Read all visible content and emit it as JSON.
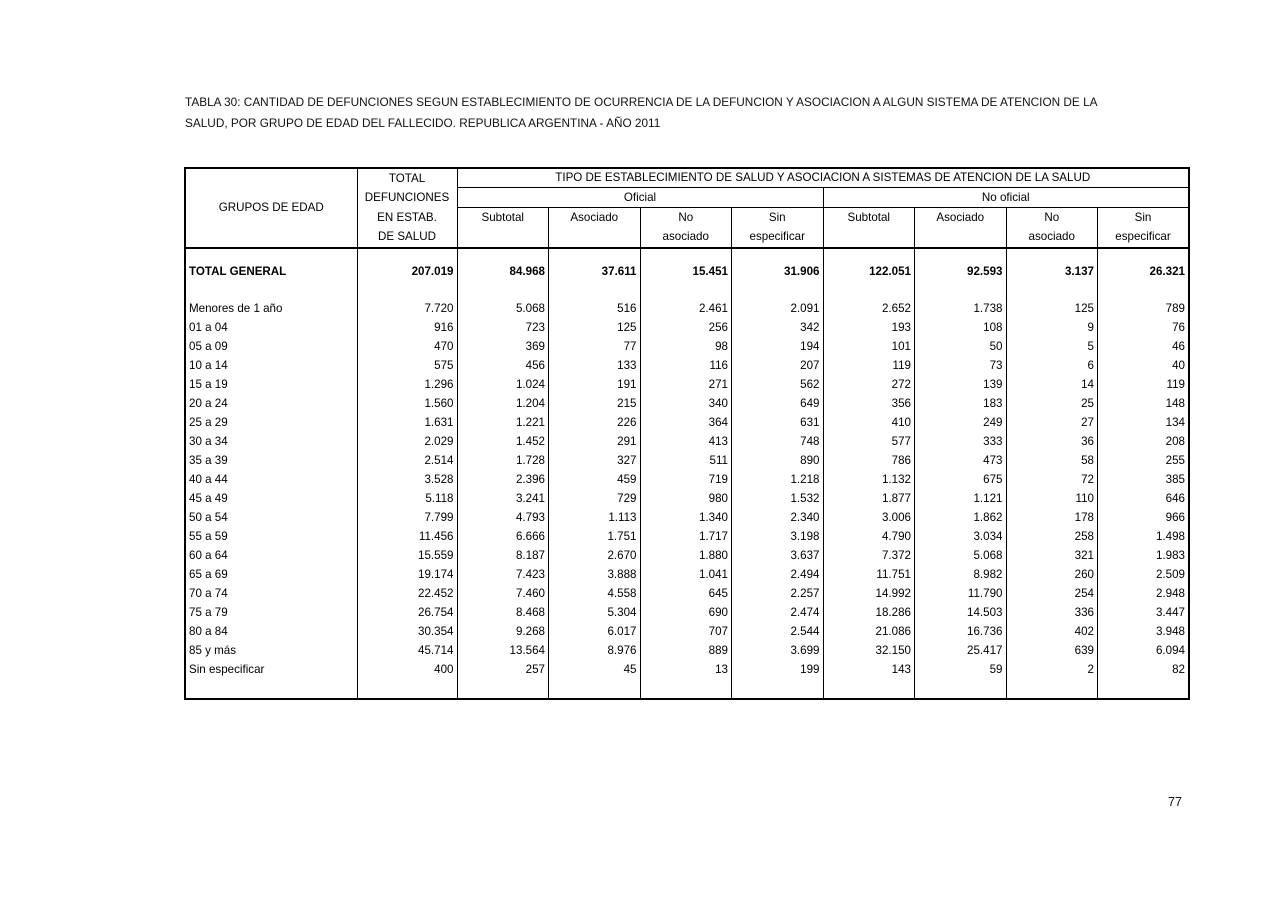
{
  "document": {
    "title_lines": [
      "TABLA 30: CANTIDAD DE DEFUNCIONES SEGUN ESTABLECIMIENTO DE OCURRENCIA DE LA DEFUNCION Y ASOCIACION A ALGUN SISTEMA DE ATENCION DE LA",
      "SALUD, POR GRUPO DE EDAD DEL FALLECIDO. REPUBLICA ARGENTINA - AÑO 2011"
    ],
    "page_number": "77"
  },
  "table": {
    "col_age_header": "GRUPOS DE EDAD",
    "col_total_header_lines": [
      "TOTAL",
      "DEFUNCIONES",
      "EN ESTAB.",
      "DE SALUD"
    ],
    "group_header": "TIPO DE ESTABLECIMIENTO DE SALUD Y ASOCIACION A SISTEMAS DE ATENCION DE LA SALUD",
    "subgroup_oficial": "Oficial",
    "subgroup_no_oficial": "No oficial",
    "sub_headers": [
      {
        "line1": "Subtotal",
        "line2": ""
      },
      {
        "line1": "Asociado",
        "line2": ""
      },
      {
        "line1": "No",
        "line2": "asociado"
      },
      {
        "line1": "Sin",
        "line2": "especificar"
      },
      {
        "line1": "Subtotal",
        "line2": ""
      },
      {
        "line1": "Asociado",
        "line2": ""
      },
      {
        "line1": "No",
        "line2": "asociado"
      },
      {
        "line1": "Sin",
        "line2": "especificar"
      }
    ],
    "total_row": {
      "label": "TOTAL GENERAL",
      "values": [
        "207.019",
        "84.968",
        "37.611",
        "15.451",
        "31.906",
        "122.051",
        "92.593",
        "3.137",
        "26.321"
      ]
    },
    "rows": [
      {
        "label": "Menores de 1 año",
        "values": [
          "7.720",
          "5.068",
          "516",
          "2.461",
          "2.091",
          "2.652",
          "1.738",
          "125",
          "789"
        ]
      },
      {
        "label": "01 a 04",
        "values": [
          "916",
          "723",
          "125",
          "256",
          "342",
          "193",
          "108",
          "9",
          "76"
        ]
      },
      {
        "label": "05 a 09",
        "values": [
          "470",
          "369",
          "77",
          "98",
          "194",
          "101",
          "50",
          "5",
          "46"
        ]
      },
      {
        "label": "10 a 14",
        "values": [
          "575",
          "456",
          "133",
          "116",
          "207",
          "119",
          "73",
          "6",
          "40"
        ]
      },
      {
        "label": "15 a 19",
        "values": [
          "1.296",
          "1.024",
          "191",
          "271",
          "562",
          "272",
          "139",
          "14",
          "119"
        ]
      },
      {
        "label": "20 a 24",
        "values": [
          "1.560",
          "1.204",
          "215",
          "340",
          "649",
          "356",
          "183",
          "25",
          "148"
        ]
      },
      {
        "label": "25 a 29",
        "values": [
          "1.631",
          "1.221",
          "226",
          "364",
          "631",
          "410",
          "249",
          "27",
          "134"
        ]
      },
      {
        "label": "30 a 34",
        "values": [
          "2.029",
          "1.452",
          "291",
          "413",
          "748",
          "577",
          "333",
          "36",
          "208"
        ]
      },
      {
        "label": "35 a 39",
        "values": [
          "2.514",
          "1.728",
          "327",
          "511",
          "890",
          "786",
          "473",
          "58",
          "255"
        ]
      },
      {
        "label": "40 a 44",
        "values": [
          "3.528",
          "2.396",
          "459",
          "719",
          "1.218",
          "1.132",
          "675",
          "72",
          "385"
        ]
      },
      {
        "label": "45 a 49",
        "values": [
          "5.118",
          "3.241",
          "729",
          "980",
          "1.532",
          "1.877",
          "1.121",
          "110",
          "646"
        ]
      },
      {
        "label": "50 a 54",
        "values": [
          "7.799",
          "4.793",
          "1.113",
          "1.340",
          "2.340",
          "3.006",
          "1.862",
          "178",
          "966"
        ]
      },
      {
        "label": "55 a 59",
        "values": [
          "11.456",
          "6.666",
          "1.751",
          "1.717",
          "3.198",
          "4.790",
          "3.034",
          "258",
          "1.498"
        ]
      },
      {
        "label": "60 a 64",
        "values": [
          "15.559",
          "8.187",
          "2.670",
          "1.880",
          "3.637",
          "7.372",
          "5.068",
          "321",
          "1.983"
        ]
      },
      {
        "label": "65 a 69",
        "values": [
          "19.174",
          "7.423",
          "3.888",
          "1.041",
          "2.494",
          "11.751",
          "8.982",
          "260",
          "2.509"
        ]
      },
      {
        "label": "70 a 74",
        "values": [
          "22.452",
          "7.460",
          "4.558",
          "645",
          "2.257",
          "14.992",
          "11.790",
          "254",
          "2.948"
        ]
      },
      {
        "label": "75 a 79",
        "values": [
          "26.754",
          "8.468",
          "5.304",
          "690",
          "2.474",
          "18.286",
          "14.503",
          "336",
          "3.447"
        ]
      },
      {
        "label": "80 a 84",
        "values": [
          "30.354",
          "9.268",
          "6.017",
          "707",
          "2.544",
          "21.086",
          "16.736",
          "402",
          "3.948"
        ]
      },
      {
        "label": "85 y más",
        "values": [
          "45.714",
          "13.564",
          "8.976",
          "889",
          "3.699",
          "32.150",
          "25.417",
          "639",
          "6.094"
        ]
      },
      {
        "label": "Sin especificar",
        "values": [
          "400",
          "257",
          "45",
          "13",
          "199",
          "143",
          "59",
          "2",
          "82"
        ]
      }
    ]
  }
}
